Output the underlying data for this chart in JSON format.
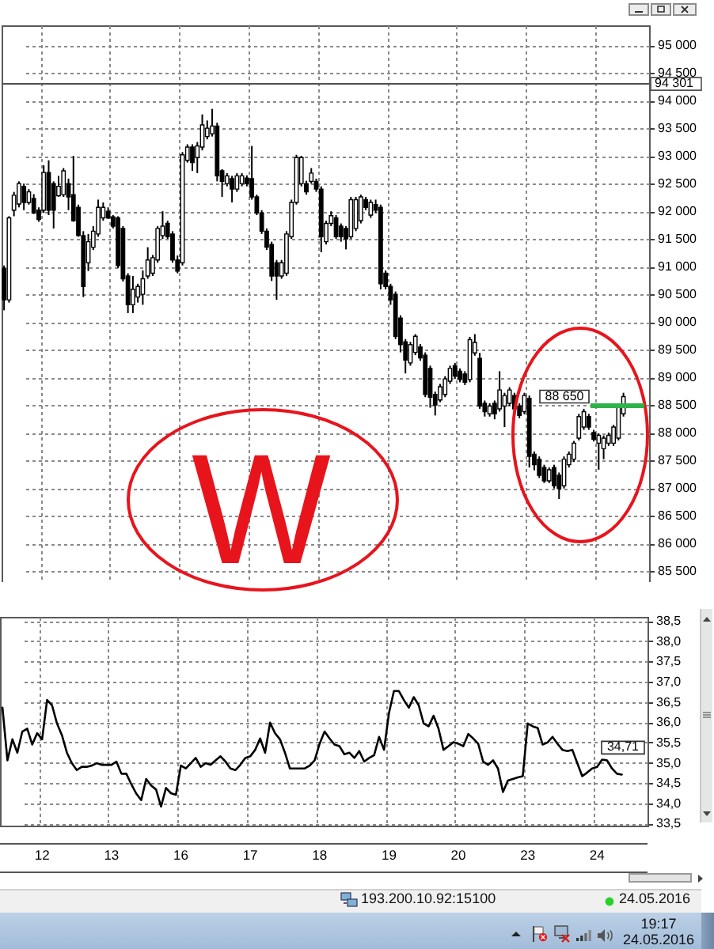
{
  "chart_data": [
    {
      "type": "candlestick",
      "categories": [
        null,
        null,
        null,
        null,
        null,
        null,
        null,
        null,
        "12",
        null,
        null,
        null,
        null,
        null,
        null,
        null,
        null,
        null,
        null,
        null,
        null,
        null,
        "13",
        null,
        null,
        null,
        null,
        null,
        null,
        null,
        null,
        null,
        null,
        null,
        null,
        null,
        "16",
        null,
        null,
        null,
        null,
        null,
        null,
        null,
        null,
        null,
        null,
        null,
        null,
        null,
        "17",
        null,
        null,
        null,
        null,
        null,
        null,
        null,
        null,
        null,
        null,
        null,
        null,
        null,
        "18",
        null,
        null,
        null,
        null,
        null,
        null,
        null,
        null,
        null,
        null,
        null,
        null,
        null,
        "19",
        null,
        null,
        null,
        null,
        null,
        null,
        null,
        null,
        null,
        null,
        null,
        null,
        null,
        "20",
        null,
        null,
        null,
        null,
        null,
        null,
        null,
        null,
        null,
        null,
        null,
        null,
        null,
        "23",
        null,
        null,
        null,
        null,
        null,
        null,
        null,
        null,
        null,
        null,
        null,
        null,
        null,
        "24",
        null,
        null,
        null,
        null,
        null
      ],
      "ohlc": [
        [
          90970,
          91020,
          90210,
          90400
        ],
        [
          90400,
          91910,
          90350,
          91880
        ],
        [
          92020,
          92350,
          91910,
          92290
        ],
        [
          92130,
          92540,
          92070,
          92500
        ],
        [
          92450,
          92500,
          92020,
          92160
        ],
        [
          92160,
          92400,
          92120,
          92350
        ],
        [
          92230,
          92310,
          91950,
          91970
        ],
        [
          92020,
          92070,
          91810,
          91850
        ],
        [
          92020,
          92830,
          91970,
          92700
        ],
        [
          92700,
          92920,
          91930,
          92020
        ],
        [
          92500,
          92540,
          91690,
          92020
        ],
        [
          92280,
          92640,
          92260,
          92450
        ],
        [
          92300,
          92780,
          92260,
          92730
        ],
        [
          92500,
          92590,
          92020,
          92260
        ],
        [
          92300,
          93000,
          91810,
          91830
        ],
        [
          92070,
          92120,
          91540,
          91560
        ],
        [
          91560,
          91640,
          90450,
          90640
        ],
        [
          91070,
          91590,
          90920,
          91450
        ],
        [
          91350,
          91730,
          91300,
          91640
        ],
        [
          91590,
          92210,
          91540,
          92070
        ],
        [
          91880,
          92160,
          91830,
          92070
        ],
        [
          92000,
          92070,
          91860,
          91880
        ],
        [
          91900,
          91930,
          91690,
          91730
        ],
        [
          91880,
          91910,
          90970,
          91020
        ],
        [
          91690,
          91730,
          90730,
          90780
        ],
        [
          90830,
          90880,
          90160,
          90310
        ],
        [
          90310,
          90830,
          90160,
          90590
        ],
        [
          90450,
          90690,
          90350,
          90640
        ],
        [
          90500,
          90930,
          90310,
          90780
        ],
        [
          90830,
          91350,
          90780,
          91120
        ],
        [
          90880,
          91210,
          90830,
          91160
        ],
        [
          91120,
          91730,
          91070,
          91690
        ],
        [
          91560,
          92000,
          91500,
          91730
        ],
        [
          91780,
          91830,
          91500,
          91540
        ],
        [
          91590,
          91640,
          91070,
          91120
        ],
        [
          91120,
          91200,
          90880,
          90920
        ],
        [
          91070,
          93070,
          91020,
          93020
        ],
        [
          92920,
          93210,
          92880,
          93160
        ],
        [
          93160,
          93210,
          92730,
          92880
        ],
        [
          92970,
          93250,
          92690,
          93180
        ],
        [
          93160,
          93750,
          93100,
          93560
        ],
        [
          93350,
          93640,
          93300,
          93500
        ],
        [
          93400,
          93850,
          93350,
          93540
        ],
        [
          93540,
          93600,
          92540,
          92640
        ],
        [
          92730,
          92760,
          92260,
          92540
        ],
        [
          92500,
          92690,
          92450,
          92640
        ],
        [
          92590,
          92640,
          92160,
          92400
        ],
        [
          92400,
          92690,
          92350,
          92640
        ],
        [
          92500,
          92690,
          92450,
          92640
        ],
        [
          92600,
          92650,
          92450,
          92500
        ],
        [
          92590,
          93180,
          92210,
          92260
        ],
        [
          92260,
          92300,
          91930,
          91970
        ],
        [
          91970,
          92020,
          91590,
          91640
        ],
        [
          91640,
          91690,
          91300,
          91350
        ],
        [
          91400,
          91450,
          90740,
          90830
        ],
        [
          91070,
          91120,
          90400,
          90830
        ],
        [
          90830,
          91120,
          90780,
          91070
        ],
        [
          90880,
          91640,
          90830,
          91590
        ],
        [
          91540,
          92210,
          91500,
          92160
        ],
        [
          92160,
          93020,
          92120,
          92970
        ],
        [
          92500,
          93000,
          92450,
          92970
        ],
        [
          92500,
          92550,
          92300,
          92350
        ],
        [
          92540,
          92780,
          92500,
          92690
        ],
        [
          92540,
          92590,
          92350,
          92400
        ],
        [
          92400,
          92450,
          91260,
          91540
        ],
        [
          91450,
          91830,
          91400,
          91780
        ],
        [
          91780,
          92000,
          91730,
          91920
        ],
        [
          91880,
          91930,
          91500,
          91540
        ],
        [
          91730,
          91780,
          91450,
          91540
        ],
        [
          91690,
          91730,
          91310,
          91500
        ],
        [
          91540,
          92260,
          91500,
          92210
        ],
        [
          91690,
          92260,
          91640,
          92210
        ],
        [
          91830,
          92300,
          91780,
          92260
        ],
        [
          92210,
          92260,
          92020,
          92070
        ],
        [
          91930,
          92210,
          91880,
          92160
        ],
        [
          92120,
          92210,
          91970,
          92020
        ],
        [
          92070,
          92120,
          90590,
          90690
        ],
        [
          90880,
          90930,
          90590,
          90640
        ],
        [
          90640,
          90690,
          90310,
          90400
        ],
        [
          90500,
          90550,
          89690,
          89740
        ],
        [
          90070,
          90120,
          89450,
          89590
        ],
        [
          89640,
          89690,
          89070,
          89310
        ],
        [
          89260,
          89640,
          89210,
          89590
        ],
        [
          89450,
          89780,
          89400,
          89740
        ],
        [
          89550,
          89600,
          89300,
          89350
        ],
        [
          89400,
          89450,
          88640,
          88690
        ],
        [
          89160,
          89210,
          88450,
          88640
        ],
        [
          88690,
          88740,
          88310,
          88500
        ],
        [
          88590,
          88880,
          88550,
          88830
        ],
        [
          88690,
          89020,
          88640,
          88970
        ],
        [
          88930,
          89210,
          88880,
          89160
        ],
        [
          89210,
          89260,
          88970,
          89020
        ],
        [
          89110,
          89160,
          88910,
          88960
        ],
        [
          89060,
          89110,
          88860,
          88910
        ],
        [
          88960,
          89730,
          88910,
          89680
        ],
        [
          89440,
          89780,
          89390,
          89630
        ],
        [
          89340,
          89440,
          88430,
          88480
        ],
        [
          88530,
          88580,
          88290,
          88380
        ],
        [
          88340,
          88530,
          88290,
          88480
        ],
        [
          88530,
          88580,
          88240,
          88340
        ],
        [
          88430,
          89110,
          88380,
          88770
        ],
        [
          88480,
          88720,
          88100,
          88670
        ],
        [
          88530,
          88820,
          88480,
          88770
        ],
        [
          88670,
          88720,
          88380,
          88430
        ],
        [
          88480,
          88530,
          88260,
          88310
        ],
        [
          88380,
          88720,
          88330,
          88670
        ],
        [
          88620,
          88670,
          87370,
          87570
        ],
        [
          87610,
          87660,
          87320,
          87420
        ],
        [
          87520,
          87570,
          87180,
          87230
        ],
        [
          87370,
          87420,
          87090,
          87130
        ],
        [
          87130,
          87370,
          87090,
          87330
        ],
        [
          87370,
          87420,
          86990,
          87040
        ],
        [
          87230,
          87280,
          86800,
          86990
        ],
        [
          87040,
          87570,
          86990,
          87520
        ],
        [
          87420,
          87660,
          87370,
          87610
        ],
        [
          87520,
          87850,
          87470,
          87810
        ],
        [
          87900,
          88340,
          87860,
          88290
        ],
        [
          88100,
          88430,
          88050,
          88380
        ],
        [
          88290,
          88340,
          88050,
          88100
        ],
        [
          88000,
          88050,
          87840,
          87880
        ],
        [
          87810,
          87990,
          87330,
          87950
        ],
        [
          87710,
          87950,
          87520,
          87900
        ],
        [
          87810,
          88000,
          87760,
          87950
        ],
        [
          87810,
          88140,
          87760,
          88100
        ],
        [
          87900,
          88530,
          87860,
          88480
        ],
        [
          88340,
          88720,
          88290,
          88650
        ]
      ],
      "ylim": [
        85300,
        95360
      ],
      "yticks": [
        {
          "value": 85500,
          "label": "85 500"
        },
        {
          "value": 86000,
          "label": "86 000"
        },
        {
          "value": 86500,
          "label": "86 500"
        },
        {
          "value": 87000,
          "label": "87 000"
        },
        {
          "value": 87500,
          "label": "87 500"
        },
        {
          "value": 88000,
          "label": "88 000"
        },
        {
          "value": 88500,
          "label": "88 500"
        },
        {
          "value": 89000,
          "label": "89 000"
        },
        {
          "value": 89500,
          "label": "89 500"
        },
        {
          "value": 90000,
          "label": "90 000"
        },
        {
          "value": 90500,
          "label": "90 500"
        },
        {
          "value": 91000,
          "label": "91 000"
        },
        {
          "value": 91500,
          "label": "91 500"
        },
        {
          "value": 92000,
          "label": "92 000"
        },
        {
          "value": 92500,
          "label": "92 500"
        },
        {
          "value": 93000,
          "label": "93 000"
        },
        {
          "value": 93500,
          "label": "93 500"
        },
        {
          "value": 94000,
          "label": "94 000"
        },
        {
          "value": 94500,
          "label": "94 500"
        },
        {
          "value": 95000,
          "label": "95 000"
        }
      ],
      "grid": true,
      "tick_labels": "y",
      "ref_lines": [
        {
          "axis": "y",
          "value": 94301,
          "label": "94 301",
          "color": "#505050"
        }
      ],
      "annotations": [
        "88 650",
        "W"
      ]
    },
    {
      "type": "line",
      "categories": [
        null,
        null,
        null,
        null,
        null,
        null,
        null,
        null,
        "12",
        null,
        null,
        null,
        null,
        null,
        null,
        null,
        null,
        null,
        null,
        null,
        null,
        null,
        "13",
        null,
        null,
        null,
        null,
        null,
        null,
        null,
        null,
        null,
        null,
        null,
        null,
        null,
        "16",
        null,
        null,
        null,
        null,
        null,
        null,
        null,
        null,
        null,
        null,
        null,
        null,
        null,
        "17",
        null,
        null,
        null,
        null,
        null,
        null,
        null,
        null,
        null,
        null,
        null,
        null,
        null,
        "18",
        null,
        null,
        null,
        null,
        null,
        null,
        null,
        null,
        null,
        null,
        null,
        null,
        null,
        "19",
        null,
        null,
        null,
        null,
        null,
        null,
        null,
        null,
        null,
        null,
        null,
        null,
        null,
        "20",
        null,
        null,
        null,
        null,
        null,
        null,
        null,
        null,
        null,
        null,
        null,
        null,
        null,
        "23",
        null,
        null,
        null,
        null,
        null,
        null,
        null,
        null,
        null,
        null,
        null,
        null,
        null,
        "24",
        null,
        null,
        null,
        null,
        null
      ],
      "series": [
        {
          "color": "#000000",
          "values": [
            36.36,
            35.06,
            35.58,
            35.25,
            35.77,
            35.84,
            35.45,
            35.73,
            35.58,
            36.55,
            36.42,
            35.97,
            35.68,
            35.25,
            34.99,
            34.82,
            34.9,
            34.9,
            34.93,
            34.99,
            34.95,
            34.95,
            34.95,
            35.03,
            34.73,
            34.73,
            34.47,
            34.24,
            34.08,
            34.6,
            34.44,
            34.34,
            33.92,
            34.38,
            34.25,
            34.21,
            34.93,
            34.86,
            34.99,
            35.12,
            34.9,
            34.99,
            34.95,
            35.06,
            35.16,
            35.03,
            34.86,
            34.82,
            34.95,
            35.12,
            35.16,
            35.32,
            35.6,
            35.25,
            35.99,
            35.73,
            35.58,
            35.25,
            34.86,
            34.86,
            34.86,
            34.86,
            34.93,
            35.06,
            35.47,
            35.77,
            35.6,
            35.45,
            35.41,
            35.21,
            35.25,
            35.12,
            35.29,
            35.03,
            35.12,
            35.19,
            35.64,
            35.32,
            36.23,
            36.77,
            36.77,
            36.55,
            36.36,
            36.62,
            36.42,
            35.97,
            35.9,
            36.16,
            35.84,
            35.32,
            35.41,
            35.51,
            35.47,
            35.41,
            35.71,
            35.6,
            35.47,
            35.03,
            34.95,
            35.06,
            34.86,
            34.28,
            34.56,
            34.6,
            34.64,
            34.67,
            35.97,
            35.9,
            35.86,
            35.45,
            35.5,
            35.64,
            35.47,
            35.32,
            35.29,
            35.32,
            34.99,
            34.67,
            34.76,
            34.86,
            34.9,
            35.08,
            35.06,
            34.86,
            34.73,
            34.71
          ]
        }
      ],
      "ylim": [
        33.45,
        38.6
      ],
      "yticks": [
        {
          "value": 33.5,
          "label": "33,5"
        },
        {
          "value": 34.0,
          "label": "34,0"
        },
        {
          "value": 34.5,
          "label": "34,5"
        },
        {
          "value": 35.0,
          "label": "35,0"
        },
        {
          "value": 35.5,
          "label": "35,5"
        },
        {
          "value": 36.0,
          "label": "36,0"
        },
        {
          "value": 36.5,
          "label": "36,5"
        },
        {
          "value": 37.0,
          "label": "37,0"
        },
        {
          "value": 37.5,
          "label": "37,5"
        },
        {
          "value": 38.0,
          "label": "38,0"
        },
        {
          "value": 38.5,
          "label": "38,5"
        }
      ],
      "grid": true,
      "annotations": [
        "34,71",
        "193.200.10.92:15100",
        "24.05.2016",
        "19:17",
        "24.05.2016"
      ]
    }
  ]
}
